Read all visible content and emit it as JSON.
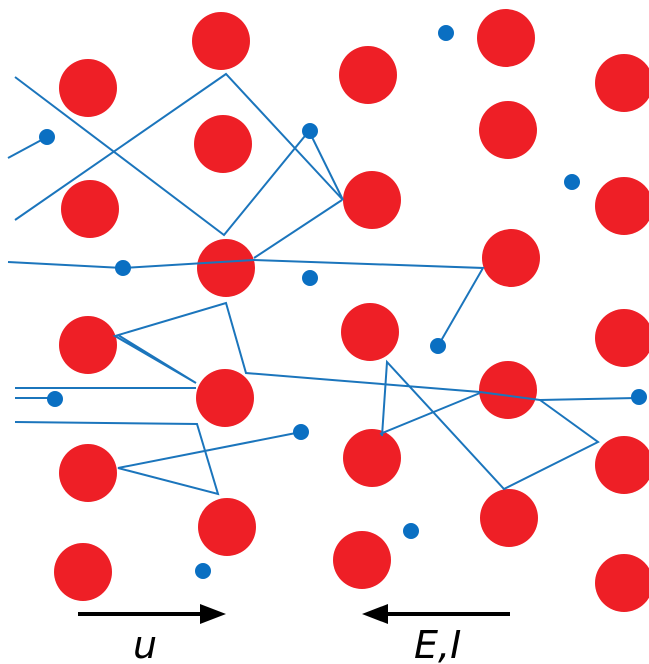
{
  "diagram": {
    "colors": {
      "background": "#ffffff",
      "ion": "#ee1f26",
      "electron": "#0a6fc2",
      "path": "#1b75bc",
      "arrow": "#000000"
    },
    "labels": {
      "velocity": "u",
      "field_current": "E,I"
    }
  }
}
